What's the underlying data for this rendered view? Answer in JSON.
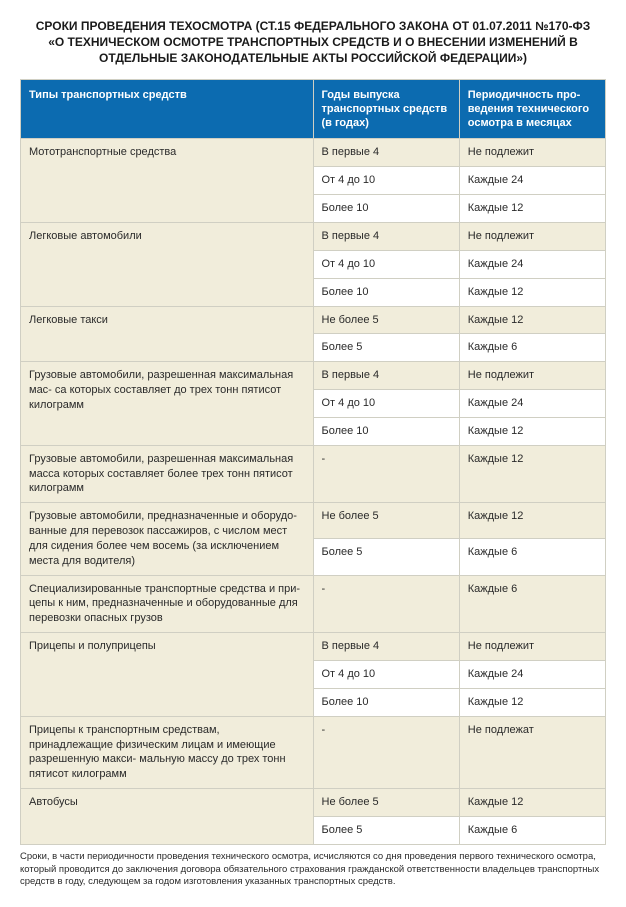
{
  "title": "СРОКИ ПРОВЕДЕНИЯ ТЕХОСМОТРА (СТ.15 ФЕДЕРАЛЬНОГО ЗАКОНА ОТ 01.07.2011 №170-ФЗ «О ТЕХНИЧЕСКОМ ОСМОТРЕ ТРАНСПОРТНЫХ СРЕДСТВ И О ВНЕСЕНИИ ИЗМЕНЕНИЙ В ОТДЕЛЬНЫЕ ЗАКОНОДАТЕЛЬНЫЕ АКТЫ РОССИЙСКОЙ ФЕДЕРАЦИИ»)",
  "columns": [
    "Типы транспортных средств",
    "Годы выпуска транспортных средств (в годах)",
    "Периодичность про- ведения технического осмотра в месяцах"
  ],
  "groups": [
    {
      "label": "Мототранспортные средства",
      "rows": [
        [
          "В первые 4",
          "Не подлежит"
        ],
        [
          "От 4 до 10",
          "Каждые 24"
        ],
        [
          "Более 10",
          "Каждые 12"
        ]
      ]
    },
    {
      "label": "Легковые автомобили",
      "rows": [
        [
          "В первые 4",
          "Не подлежит"
        ],
        [
          "От 4 до 10",
          "Каждые 24"
        ],
        [
          "Более 10",
          "Каждые 12"
        ]
      ]
    },
    {
      "label": "Легковые такси",
      "rows": [
        [
          "Не более 5",
          "Каждые 12"
        ],
        [
          "Более 5",
          "Каждые 6"
        ]
      ]
    },
    {
      "label": "Грузовые автомобили, разрешенная максимальная мас- са которых составляет до трех тонн пятисот килограмм",
      "rows": [
        [
          "В первые 4",
          "Не подлежит"
        ],
        [
          "От 4 до 10",
          "Каждые 24"
        ],
        [
          "Более 10",
          "Каждые 12"
        ]
      ]
    },
    {
      "label": "Грузовые автомобили, разрешенная максимальная масса которых составляет более трех тонн пятисот килограмм",
      "rows": [
        [
          "-",
          "Каждые 12"
        ]
      ]
    },
    {
      "label": "Грузовые автомобили, предназначенные и оборудо- ванные для перевозок пассажиров, с числом мест для сидения более чем восемь (за исключением места для водителя)",
      "rows": [
        [
          "Не более 5",
          "Каждые 12"
        ],
        [
          "Более 5",
          "Каждые 6"
        ]
      ]
    },
    {
      "label": "Специализированные транспортные средства и при- цепы к ним, предназначенные и оборудованные для перевозки опасных грузов",
      "rows": [
        [
          "-",
          "Каждые 6"
        ]
      ]
    },
    {
      "label": "Прицепы и полуприцепы",
      "rows": [
        [
          "В первые 4",
          "Не подлежит"
        ],
        [
          "От 4 до 10",
          "Каждые 24"
        ],
        [
          "Более 10",
          "Каждые 12"
        ]
      ]
    },
    {
      "label": "Прицепы к транспортным средствам, принадлежащие физическим лицам и имеющие разрешенную макси- мальную массу до трех тонн пятисот килограмм",
      "rows": [
        [
          "-",
          "Не подлежат"
        ]
      ]
    },
    {
      "label": "Автобусы",
      "rows": [
        [
          "Не более 5",
          "Каждые 12"
        ],
        [
          "Более 5",
          "Каждые 6"
        ]
      ]
    }
  ],
  "footnote": "Сроки, в части периодичности проведения технического осмотра, исчисляются со дня проведения первого технического осмотра, который проводится до заключения договора обязательного страхования гражданской ответственности владельцев транспортных средств в году, следующем за годом изготовления указанных транспортных средств.",
  "colors": {
    "header_bg": "#0c6bb0",
    "group_bg": "#f1eddb",
    "border": "#d0cfc3"
  }
}
